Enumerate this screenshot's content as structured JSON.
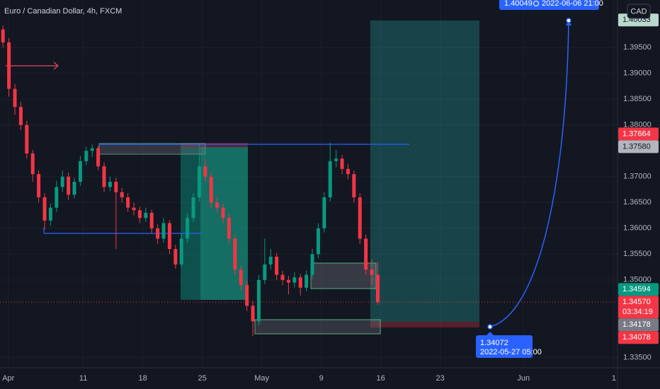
{
  "chart_data": {
    "type": "candlestick",
    "title": "Euro / Canadian Dollar, 4h, FXCM",
    "currency": "CAD",
    "up_color": "#089981",
    "down_color": "#f23645",
    "grid": true,
    "xlim": [
      -7.0,
      44.9
    ],
    "ylim": [
      1.333,
      1.4042
    ],
    "xticks": [
      {
        "value": -6.3,
        "label": "Apr"
      },
      {
        "value": 0,
        "label": "11"
      },
      {
        "value": 5,
        "label": "18"
      },
      {
        "value": 10,
        "label": "25"
      },
      {
        "value": 15,
        "label": "May"
      },
      {
        "value": 20,
        "label": "9"
      },
      {
        "value": 25,
        "label": "16"
      },
      {
        "value": 30,
        "label": "23"
      },
      {
        "value": 37,
        "label": "Jun"
      },
      {
        "value": 44.6,
        "label": "1"
      }
    ],
    "yticks": [
      {
        "value": 1.395,
        "label": "1.39500"
      },
      {
        "value": 1.39,
        "label": "1.39000"
      },
      {
        "value": 1.385,
        "label": "1.38500"
      },
      {
        "value": 1.38,
        "label": "1.38000"
      },
      {
        "value": 1.37,
        "label": "1.37000"
      },
      {
        "value": 1.365,
        "label": "1.36500"
      },
      {
        "value": 1.36,
        "label": "1.36000"
      },
      {
        "value": 1.355,
        "label": "1.35500"
      },
      {
        "value": 1.35,
        "label": "1.35000"
      },
      {
        "value": 1.335,
        "label": "1.33500"
      }
    ],
    "x": [
      -6.75,
      -6.25,
      -5.75,
      -5.25,
      -4.75,
      -4.25,
      -3.75,
      -3.25,
      -2.75,
      -2.25,
      -1.75,
      -1.25,
      -0.75,
      -0.25,
      0.25,
      0.75,
      1.25,
      1.75,
      2.25,
      2.75,
      3.25,
      3.75,
      4.25,
      4.75,
      5.25,
      5.75,
      6.25,
      6.75,
      7.25,
      7.75,
      8.25,
      8.75,
      9.25,
      9.75,
      10.25,
      10.75,
      11.25,
      11.75,
      12.25,
      12.75,
      13.25,
      13.75,
      14.25,
      14.75,
      15.25,
      15.75,
      16.25,
      16.75,
      17.25,
      17.75,
      18.25,
      18.75,
      19.25,
      19.75,
      20.25,
      20.75,
      21.25,
      21.75,
      22.25,
      22.75,
      23.25,
      23.75,
      24.25,
      24.75
    ],
    "ohlc": [
      [
        1.3985,
        1.3992,
        1.395,
        1.396
      ],
      [
        1.396,
        1.3968,
        1.3855,
        1.387
      ],
      [
        1.387,
        1.388,
        1.382,
        1.3835
      ],
      [
        1.3835,
        1.3845,
        1.379,
        1.38
      ],
      [
        1.38,
        1.3808,
        1.3735,
        1.3745
      ],
      [
        1.3745,
        1.3752,
        1.369,
        1.3705
      ],
      [
        1.3705,
        1.3712,
        1.365,
        1.366
      ],
      [
        1.366,
        1.3668,
        1.3598,
        1.3615
      ],
      [
        1.3615,
        1.3648,
        1.3605,
        1.364
      ],
      [
        1.364,
        1.3692,
        1.3632,
        1.368
      ],
      [
        1.368,
        1.3712,
        1.367,
        1.37
      ],
      [
        1.37,
        1.3708,
        1.3655,
        1.3665
      ],
      [
        1.3665,
        1.3698,
        1.3658,
        1.369
      ],
      [
        1.369,
        1.374,
        1.3682,
        1.373
      ],
      [
        1.373,
        1.3758,
        1.3722,
        1.375
      ],
      [
        1.375,
        1.3762,
        1.3738,
        1.3755
      ],
      [
        1.3755,
        1.376,
        1.3712,
        1.372
      ],
      [
        1.372,
        1.3728,
        1.367,
        1.368
      ],
      [
        1.368,
        1.37,
        1.3672,
        1.369
      ],
      [
        1.369,
        1.3698,
        1.356,
        1.367
      ],
      [
        1.367,
        1.3678,
        1.365,
        1.366
      ],
      [
        1.366,
        1.3668,
        1.3632,
        1.364
      ],
      [
        1.364,
        1.365,
        1.3625,
        1.3635
      ],
      [
        1.3635,
        1.3642,
        1.361,
        1.362
      ],
      [
        1.362,
        1.364,
        1.3612,
        1.363
      ],
      [
        1.363,
        1.3636,
        1.359,
        1.36
      ],
      [
        1.36,
        1.3608,
        1.357,
        1.358
      ],
      [
        1.358,
        1.362,
        1.3572,
        1.361
      ],
      [
        1.361,
        1.3616,
        1.355,
        1.356
      ],
      [
        1.356,
        1.3568,
        1.3522,
        1.353
      ],
      [
        1.353,
        1.359,
        1.3525,
        1.358
      ],
      [
        1.358,
        1.3628,
        1.3572,
        1.362
      ],
      [
        1.362,
        1.3668,
        1.3612,
        1.366
      ],
      [
        1.366,
        1.3762,
        1.3652,
        1.372
      ],
      [
        1.372,
        1.3735,
        1.369,
        1.37
      ],
      [
        1.37,
        1.3708,
        1.364,
        1.365
      ],
      [
        1.365,
        1.366,
        1.363,
        1.364
      ],
      [
        1.364,
        1.3648,
        1.361,
        1.362
      ],
      [
        1.362,
        1.3628,
        1.357,
        1.358
      ],
      [
        1.358,
        1.3588,
        1.351,
        1.352
      ],
      [
        1.352,
        1.3528,
        1.348,
        1.349
      ],
      [
        1.349,
        1.3498,
        1.344,
        1.345
      ],
      [
        1.345,
        1.346,
        1.3391,
        1.342
      ],
      [
        1.342,
        1.351,
        1.3412,
        1.35
      ],
      [
        1.35,
        1.358,
        1.3492,
        1.353
      ],
      [
        1.353,
        1.356,
        1.352,
        1.3545
      ],
      [
        1.3545,
        1.3552,
        1.35,
        1.351
      ],
      [
        1.351,
        1.3518,
        1.349,
        1.35
      ],
      [
        1.35,
        1.3508,
        1.3472,
        1.3495
      ],
      [
        1.3495,
        1.3515,
        1.3485,
        1.3505
      ],
      [
        1.3505,
        1.3512,
        1.347,
        1.3485
      ],
      [
        1.3485,
        1.3518,
        1.3478,
        1.351
      ],
      [
        1.351,
        1.356,
        1.3502,
        1.355
      ],
      [
        1.355,
        1.361,
        1.3542,
        1.36
      ],
      [
        1.36,
        1.367,
        1.3592,
        1.366
      ],
      [
        1.366,
        1.3766,
        1.3652,
        1.373
      ],
      [
        1.373,
        1.3752,
        1.3718,
        1.3735
      ],
      [
        1.3735,
        1.3742,
        1.3705,
        1.3715
      ],
      [
        1.3715,
        1.3725,
        1.3695,
        1.3705
      ],
      [
        1.3705,
        1.3712,
        1.365,
        1.366
      ],
      [
        1.366,
        1.3668,
        1.357,
        1.358
      ],
      [
        1.358,
        1.3588,
        1.351,
        1.352
      ],
      [
        1.352,
        1.354,
        1.349,
        1.351
      ],
      [
        1.351,
        1.3535,
        1.3452,
        1.3457
      ]
    ],
    "price_tags": [
      {
        "value": 1.40033,
        "color": "#b9d9cf",
        "text_color": "#131722"
      },
      {
        "value": 1.3758,
        "label": "1.37580",
        "color": "#b2b5be",
        "text_color": "#131722"
      },
      {
        "value": 1.37664,
        "color": "#f23645",
        "text_color": "#ffffff"
      },
      {
        "value": 1.3457,
        "label": "1.34570",
        "color": "#f23645",
        "text_color": "#ffffff",
        "countdown": "03:34:19"
      },
      {
        "value": 1.34594,
        "color": "#089981",
        "text_color": "#ffffff"
      },
      {
        "value": 1.34178,
        "color": "#787b86",
        "text_color": "#ffffff"
      },
      {
        "value": 1.34078,
        "color": "#f23645",
        "text_color": "#ffffff"
      }
    ],
    "annotations": {
      "target": {
        "price": 1.40049,
        "time": "2022-06-06  21:00"
      },
      "entry": {
        "price": 1.34072,
        "time": "2022-05-27 05:00"
      }
    }
  }
}
